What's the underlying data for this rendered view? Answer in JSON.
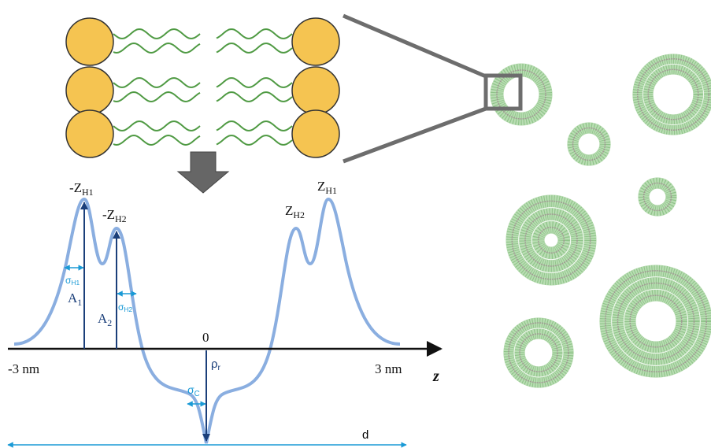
{
  "labels": {
    "neg_zh1": {
      "main": "-Z",
      "sub": "H1"
    },
    "neg_zh2": {
      "main": "-Z",
      "sub": "H2"
    },
    "zh2": {
      "main": "Z",
      "sub": "H2"
    },
    "zh1": {
      "main": "Z",
      "sub": "H1"
    },
    "sigma_h1": {
      "main": "σ",
      "sub": "H1"
    },
    "sigma_h2": {
      "main": "σ",
      "sub": "H2"
    },
    "sigma_c": {
      "main": "σ",
      "sub": "C"
    },
    "a1": {
      "main": "A",
      "sub": "1"
    },
    "a2": {
      "main": "A",
      "sub": "2"
    },
    "rho_r": {
      "main": "ρ",
      "sub": "r"
    }
  },
  "axis": {
    "left": "-3 nm",
    "right": "3 nm",
    "origin": "0",
    "name": "z"
  },
  "thickness": "d"
}
